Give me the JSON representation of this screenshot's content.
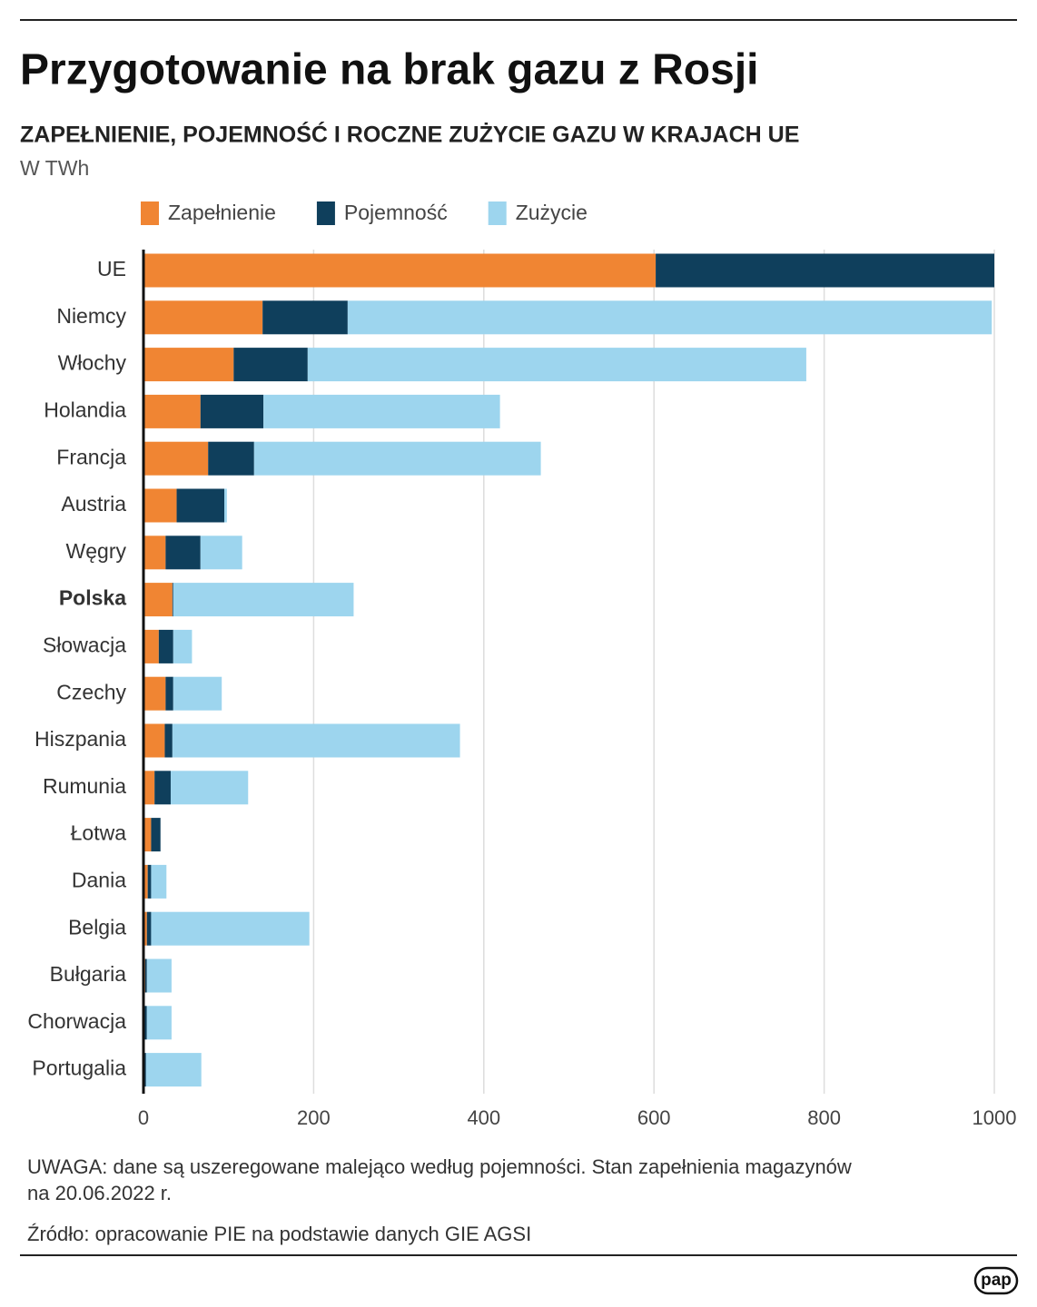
{
  "chart_data": {
    "type": "stacked-barh",
    "title": "Przygotowanie na brak gazu z Rosji",
    "subtitle": "ZAPEŁNIENIE, POJEMNOŚĆ I ROCZNE ZUŻYCIE GAZU W KRAJACH UE",
    "unit": "W TWh",
    "categories": [
      "UE",
      "Niemcy",
      "Włochy",
      "Holandia",
      "Francja",
      "Austria",
      "Węgry",
      "Polska",
      "Słowacja",
      "Czechy",
      "Hiszpania",
      "Rumunia",
      "Łotwa",
      "Dania",
      "Belgia",
      "Bułgaria",
      "Chorwacja",
      "Portugalia"
    ],
    "bold_category": "Polska",
    "series": [
      {
        "name": "Zapełnienie",
        "color": "#f08533",
        "values": [
          602,
          140,
          106,
          67,
          76,
          39,
          26,
          34,
          18,
          26,
          25,
          13,
          9,
          5,
          4,
          2,
          1,
          1
        ]
      },
      {
        "name": "Pojemność",
        "color": "#0f3f5c",
        "values": [
          398,
          100,
          87,
          74,
          54,
          56,
          41,
          1,
          17,
          9,
          9,
          19,
          11,
          4,
          5,
          2,
          3,
          2
        ]
      },
      {
        "name": "Zużycie",
        "color": "#9dd5ee",
        "values": [
          null,
          757,
          586,
          278,
          337,
          3,
          49,
          212,
          22,
          57,
          338,
          91,
          null,
          18,
          186,
          29,
          29,
          65
        ]
      }
    ],
    "xlim": [
      0,
      1000
    ],
    "xticks": [
      0,
      200,
      400,
      600,
      800,
      1000
    ],
    "grid": true,
    "note": [
      "UWAGA: dane są uszeregowane malejąco według pojemności. Stan zapełnienia magazynów",
      "na 20.06.2022 r."
    ],
    "source": "Źródło: opracowanie PIE na podstawie danych GIE AGSI",
    "logo": "pap"
  }
}
